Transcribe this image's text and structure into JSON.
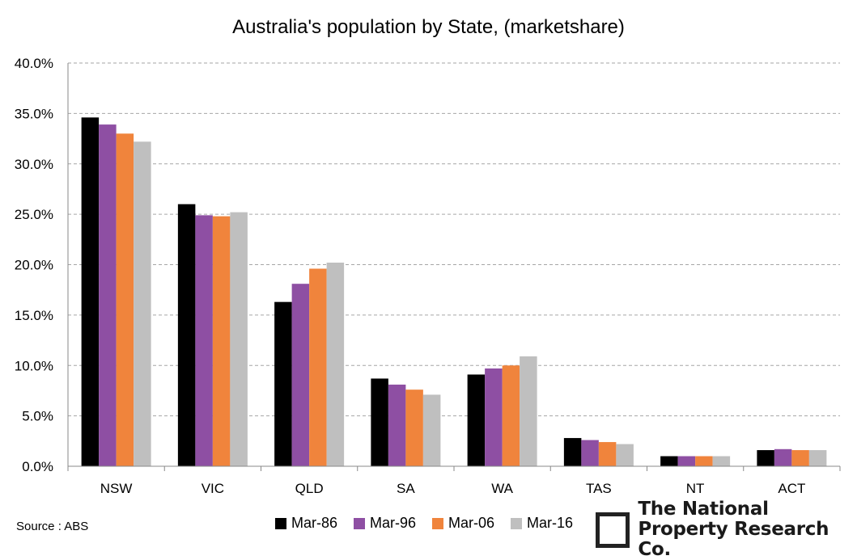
{
  "chart_data": {
    "type": "bar",
    "title": "Australia's population by State, (marketshare)",
    "categories": [
      "NSW",
      "VIC",
      "QLD",
      "SA",
      "WA",
      "TAS",
      "NT",
      "ACT"
    ],
    "series": [
      {
        "name": "Mar-86",
        "color": "#000000",
        "values": [
          34.6,
          26.0,
          16.3,
          8.7,
          9.1,
          2.8,
          1.0,
          1.6
        ]
      },
      {
        "name": "Mar-96",
        "color": "#8e4fa3",
        "values": [
          33.9,
          24.9,
          18.1,
          8.1,
          9.7,
          2.6,
          1.0,
          1.7
        ]
      },
      {
        "name": "Mar-06",
        "color": "#f0843c",
        "values": [
          33.0,
          24.8,
          19.6,
          7.6,
          10.0,
          2.4,
          1.0,
          1.6
        ]
      },
      {
        "name": "Mar-16",
        "color": "#bfbfbf",
        "values": [
          32.2,
          25.2,
          20.2,
          7.1,
          10.9,
          2.2,
          1.0,
          1.6
        ]
      }
    ],
    "ylim": [
      0,
      40
    ],
    "yticks": [
      "0.0%",
      "5.0%",
      "10.0%",
      "15.0%",
      "20.0%",
      "25.0%",
      "30.0%",
      "35.0%",
      "40.0%"
    ],
    "ytick_values": [
      0,
      5,
      10,
      15,
      20,
      25,
      30,
      35,
      40
    ],
    "legend_position": "bottom",
    "grid": true
  },
  "source": "Source : ABS",
  "logo": {
    "line1": "The National",
    "line2": "Property Research Co."
  }
}
